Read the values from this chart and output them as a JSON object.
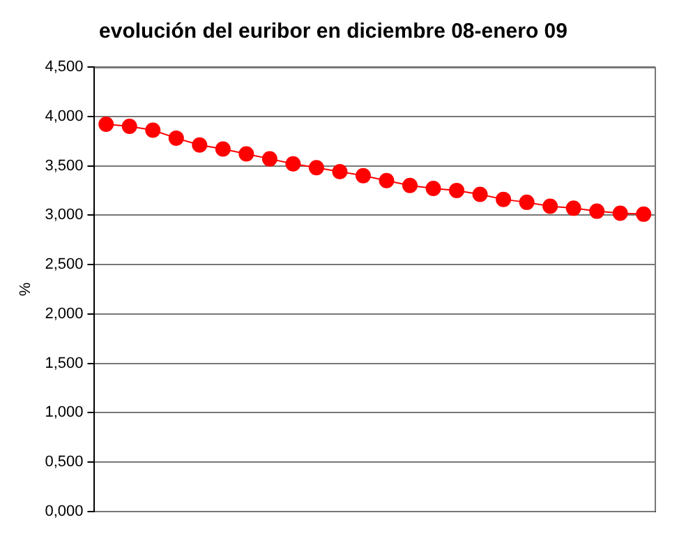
{
  "chart_data": {
    "type": "line",
    "title": "evolución del euribor en diciembre 08-enero 09",
    "ylabel": "%",
    "categories": [
      null,
      null,
      null,
      null,
      null,
      null,
      null,
      null,
      null,
      null,
      null,
      null,
      null,
      null,
      null,
      null,
      null,
      null,
      null,
      null,
      null,
      null,
      null,
      null
    ],
    "series": [
      {
        "color": "#ff0000",
        "values": [
          3.92,
          3.9,
          3.86,
          3.78,
          3.71,
          3.67,
          3.62,
          3.57,
          3.52,
          3.48,
          3.44,
          3.4,
          3.35,
          3.3,
          3.27,
          3.25,
          3.21,
          3.16,
          3.13,
          3.09,
          3.07,
          3.04,
          3.02,
          3.01
        ]
      }
    ],
    "ylim": [
      0,
      4.5
    ],
    "yticks": [
      {
        "value": 0,
        "label": "0,000"
      },
      {
        "value": 0.5,
        "label": "0,500"
      },
      {
        "value": 1,
        "label": "1,000"
      },
      {
        "value": 1.5,
        "label": "1,500"
      },
      {
        "value": 2,
        "label": "2,000"
      },
      {
        "value": 2.5,
        "label": "2,500"
      },
      {
        "value": 3,
        "label": "3,000"
      },
      {
        "value": 3.5,
        "label": "3,500"
      },
      {
        "value": 4,
        "label": "4,000"
      },
      {
        "value": 4.5,
        "label": "4,500"
      }
    ],
    "grid": "y",
    "legend": false,
    "marker": "circle",
    "line_style": "solid",
    "tick_labels": "y"
  }
}
